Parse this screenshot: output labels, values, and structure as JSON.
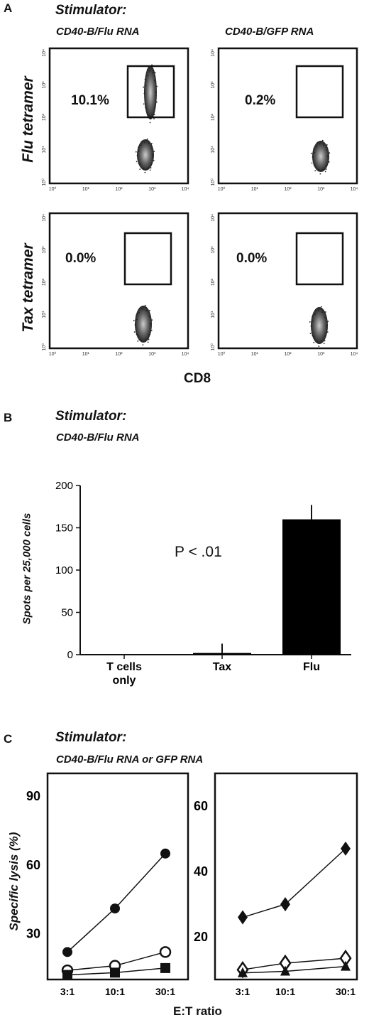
{
  "panel_a": {
    "letter": "A",
    "stimulator_label": "Stimulator:",
    "col_labels": [
      "CD40-B/Flu RNA",
      "CD40-B/GFP RNA"
    ],
    "row_labels": [
      "Flu tetramer",
      "Tax tetramer"
    ],
    "xlabel": "CD8",
    "tick_labels": [
      "10⁰",
      "10¹",
      "10²",
      "10³",
      "10⁴"
    ]
  },
  "panel_b": {
    "letter": "B",
    "stimulator_label": "Stimulator:",
    "condition": "CD40-B/Flu RNA",
    "annotation": "P < .01"
  },
  "panel_c": {
    "letter": "C",
    "stimulator_label": "Stimulator:",
    "condition": "CD40-B/Flu RNA or GFP RNA"
  },
  "chart_data": [
    {
      "type": "scatter",
      "panel": "A",
      "subtype": "flow-cytometry-grid",
      "xlabel": "CD8",
      "scale": "log",
      "ticks": [
        "10⁰",
        "10¹",
        "10²",
        "10³",
        "10⁴"
      ],
      "plots": [
        {
          "row": "Flu tetramer",
          "column": "CD40-B/Flu RNA",
          "gate_percent": "10.1%"
        },
        {
          "row": "Flu tetramer",
          "column": "CD40-B/GFP RNA",
          "gate_percent": "0.2%"
        },
        {
          "row": "Tax tetramer",
          "column": "CD40-B/Flu RNA",
          "gate_percent": "0.0%"
        },
        {
          "row": "Tax tetramer",
          "column": "CD40-B/GFP RNA",
          "gate_percent": "0.0%"
        }
      ]
    },
    {
      "type": "bar",
      "panel": "B",
      "categories": [
        "T cells only",
        "Tax",
        "Flu"
      ],
      "values": [
        0,
        2,
        160
      ],
      "errors": [
        0,
        11,
        17
      ],
      "ylabel": "Spots per 25,000 cells",
      "ylim": [
        0,
        200
      ],
      "yticks": [
        0,
        50,
        100,
        150,
        200
      ],
      "bar_color": "#000000"
    },
    {
      "type": "line",
      "panel": "C-left",
      "x": [
        "3:1",
        "10:1",
        "30:1"
      ],
      "series": [
        {
          "marker": "circle-filled",
          "values": [
            22,
            41,
            65
          ]
        },
        {
          "marker": "circle-open",
          "values": [
            14,
            16,
            22
          ]
        },
        {
          "marker": "square-filled",
          "values": [
            12,
            13,
            15
          ]
        }
      ],
      "ylabel": "Specific lysis (%)",
      "xlabel": "E:T ratio",
      "ylim": [
        10,
        100
      ],
      "yticks": [
        30,
        60,
        90
      ]
    },
    {
      "type": "line",
      "panel": "C-right",
      "x": [
        "3:1",
        "10:1",
        "30:1"
      ],
      "series": [
        {
          "marker": "diamond-filled",
          "values": [
            26,
            30,
            47
          ]
        },
        {
          "marker": "diamond-open",
          "values": [
            10,
            12,
            13.5
          ]
        },
        {
          "marker": "triangle-filled",
          "values": [
            9,
            9.5,
            11
          ]
        }
      ],
      "xlabel": "E:T ratio",
      "ylim": [
        7,
        70
      ],
      "yticks": [
        20,
        40,
        60
      ]
    }
  ]
}
